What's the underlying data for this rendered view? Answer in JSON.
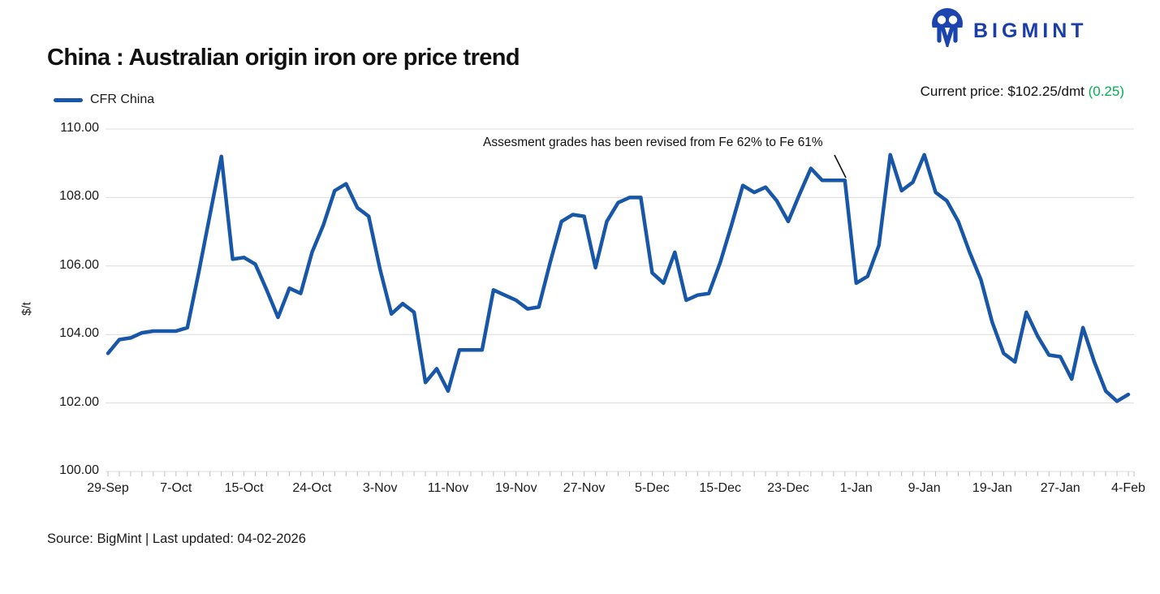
{
  "brand": {
    "name": "BIGMINT",
    "color": "#1b3da8",
    "icon_color": "#1c44ae"
  },
  "header": {
    "title": "China : Australian origin iron ore price trend",
    "current_price_label": "Current price: $102.25/dmt ",
    "current_price_change": "(0.25)",
    "change_color": "#00b050"
  },
  "legend": {
    "series_label": "CFR China"
  },
  "annotation": {
    "text": "Assesment grades has been revised from Fe 62% to Fe 61%"
  },
  "footer": {
    "source": "Source: BigMint | Last updated: 04-02-2026"
  },
  "chart_data": {
    "type": "line",
    "title": "China : Australian origin iron ore price trend",
    "ylabel": "$/t",
    "ylim": [
      100,
      110
    ],
    "grid": true,
    "legend_position": "top-left",
    "line_color": "#1857a8",
    "grid_color": "#dcdcdc",
    "tick_color": "#c0c0c0",
    "ytick_labels": [
      "110.00",
      "108.00",
      "106.00",
      "104.00",
      "102.00",
      "100.00"
    ],
    "ytick_values": [
      110,
      108,
      106,
      104,
      102,
      100
    ],
    "xtick_labels": [
      "29-Sep",
      "7-Oct",
      "15-Oct",
      "24-Oct",
      "3-Nov",
      "11-Nov",
      "19-Nov",
      "27-Nov",
      "5-Dec",
      "15-Dec",
      "23-Dec",
      "1-Jan",
      "9-Jan",
      "19-Jan",
      "27-Jan",
      "4-Feb"
    ],
    "points_per_label": 6,
    "series": [
      {
        "name": "CFR China",
        "values": [
          103.45,
          103.85,
          103.9,
          104.05,
          104.1,
          104.1,
          104.1,
          104.2,
          105.8,
          107.5,
          109.2,
          106.2,
          106.25,
          106.05,
          105.3,
          104.5,
          105.35,
          105.2,
          106.4,
          107.2,
          108.2,
          108.4,
          107.7,
          107.45,
          105.9,
          104.6,
          104.9,
          104.65,
          102.6,
          103.0,
          102.35,
          103.55,
          103.55,
          103.55,
          105.3,
          105.15,
          105.0,
          104.75,
          104.8,
          106.1,
          107.3,
          107.5,
          107.45,
          105.95,
          107.3,
          107.85,
          108.0,
          108.0,
          105.8,
          105.5,
          106.4,
          105.0,
          105.15,
          105.2,
          106.1,
          107.2,
          108.35,
          108.15,
          108.3,
          107.9,
          107.3,
          108.1,
          108.85,
          108.5,
          108.5,
          108.5,
          105.5,
          105.7,
          106.6,
          109.25,
          108.2,
          108.45,
          109.25,
          108.15,
          107.9,
          107.3,
          106.4,
          105.6,
          104.35,
          103.45,
          103.2,
          104.65,
          103.95,
          103.4,
          103.35,
          102.7,
          104.2,
          103.2,
          102.35,
          102.05,
          102.25
        ]
      }
    ]
  }
}
